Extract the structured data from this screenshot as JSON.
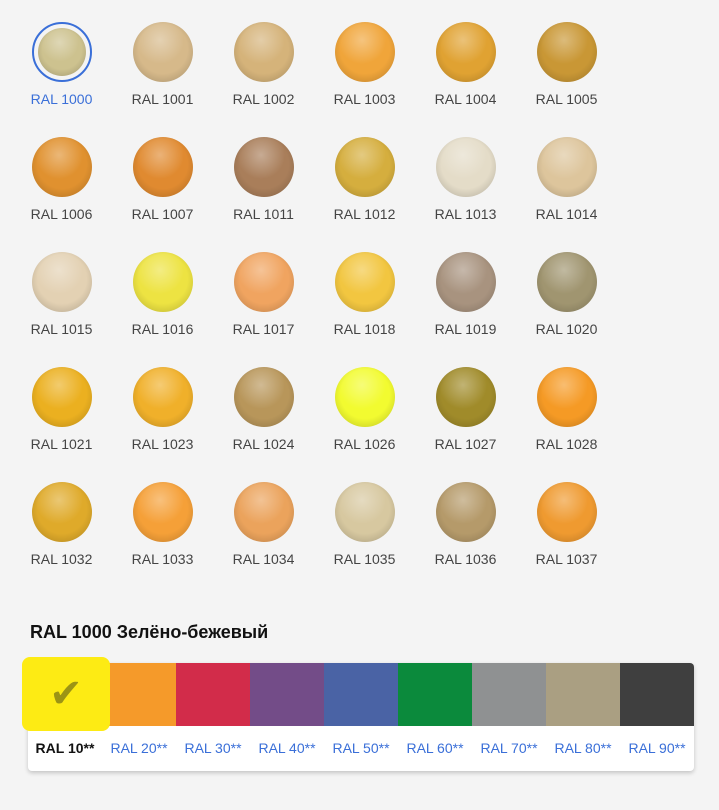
{
  "colors": [
    {
      "label": "RAL 1000",
      "hex": "#cdc28f",
      "selected": true
    },
    {
      "label": "RAL 1001",
      "hex": "#d6b98a"
    },
    {
      "label": "RAL 1002",
      "hex": "#d5b37a"
    },
    {
      "label": "RAL 1003",
      "hex": "#f0a53a"
    },
    {
      "label": "RAL 1004",
      "hex": "#e0a232"
    },
    {
      "label": "RAL 1005",
      "hex": "#c99735"
    },
    {
      "label": "RAL 1006",
      "hex": "#e0912f"
    },
    {
      "label": "RAL 1007",
      "hex": "#e08a30"
    },
    {
      "label": "RAL 1011",
      "hex": "#a97e5a"
    },
    {
      "label": "RAL 1012",
      "hex": "#d5ae3e"
    },
    {
      "label": "RAL 1013",
      "hex": "#e4dcc8"
    },
    {
      "label": "RAL 1014",
      "hex": "#ddc59c"
    },
    {
      "label": "RAL 1015",
      "hex": "#e3d1b3"
    },
    {
      "label": "RAL 1016",
      "hex": "#ede342"
    },
    {
      "label": "RAL 1017",
      "hex": "#f0a460"
    },
    {
      "label": "RAL 1018",
      "hex": "#f2c640"
    },
    {
      "label": "RAL 1019",
      "hex": "#a8937f"
    },
    {
      "label": "RAL 1020",
      "hex": "#a09570"
    },
    {
      "label": "RAL 1021",
      "hex": "#ebb020"
    },
    {
      "label": "RAL 1023",
      "hex": "#f0b02a"
    },
    {
      "label": "RAL 1024",
      "hex": "#b8965a"
    },
    {
      "label": "RAL 1026",
      "hex": "#f2fb30"
    },
    {
      "label": "RAL 1027",
      "hex": "#a08b2a"
    },
    {
      "label": "RAL 1028",
      "hex": "#f59a25"
    },
    {
      "label": "RAL 1032",
      "hex": "#dfaa2a"
    },
    {
      "label": "RAL 1033",
      "hex": "#f5a038"
    },
    {
      "label": "RAL 1034",
      "hex": "#eba35c"
    },
    {
      "label": "RAL 1035",
      "hex": "#d7c8a0"
    },
    {
      "label": "RAL 1036",
      "hex": "#b59a6a"
    },
    {
      "label": "RAL 1037",
      "hex": "#ef9a30"
    }
  ],
  "selected_title": "RAL 1000 Зелёно-бежевый",
  "groups": [
    {
      "label": "RAL 10**",
      "hex": "#fdeb14",
      "active": true
    },
    {
      "label": "RAL 20**",
      "hex": "#f59a2a"
    },
    {
      "label": "RAL 30**",
      "hex": "#d22c4a"
    },
    {
      "label": "RAL 40**",
      "hex": "#734c88"
    },
    {
      "label": "RAL 50**",
      "hex": "#4a63a5"
    },
    {
      "label": "RAL 60**",
      "hex": "#0b8a3c"
    },
    {
      "label": "RAL 70**",
      "hex": "#8f9192"
    },
    {
      "label": "RAL 80**",
      "hex": "#aa9f82"
    },
    {
      "label": "RAL 90**",
      "hex": "#3f3f3f"
    }
  ],
  "check_icon": "✔"
}
